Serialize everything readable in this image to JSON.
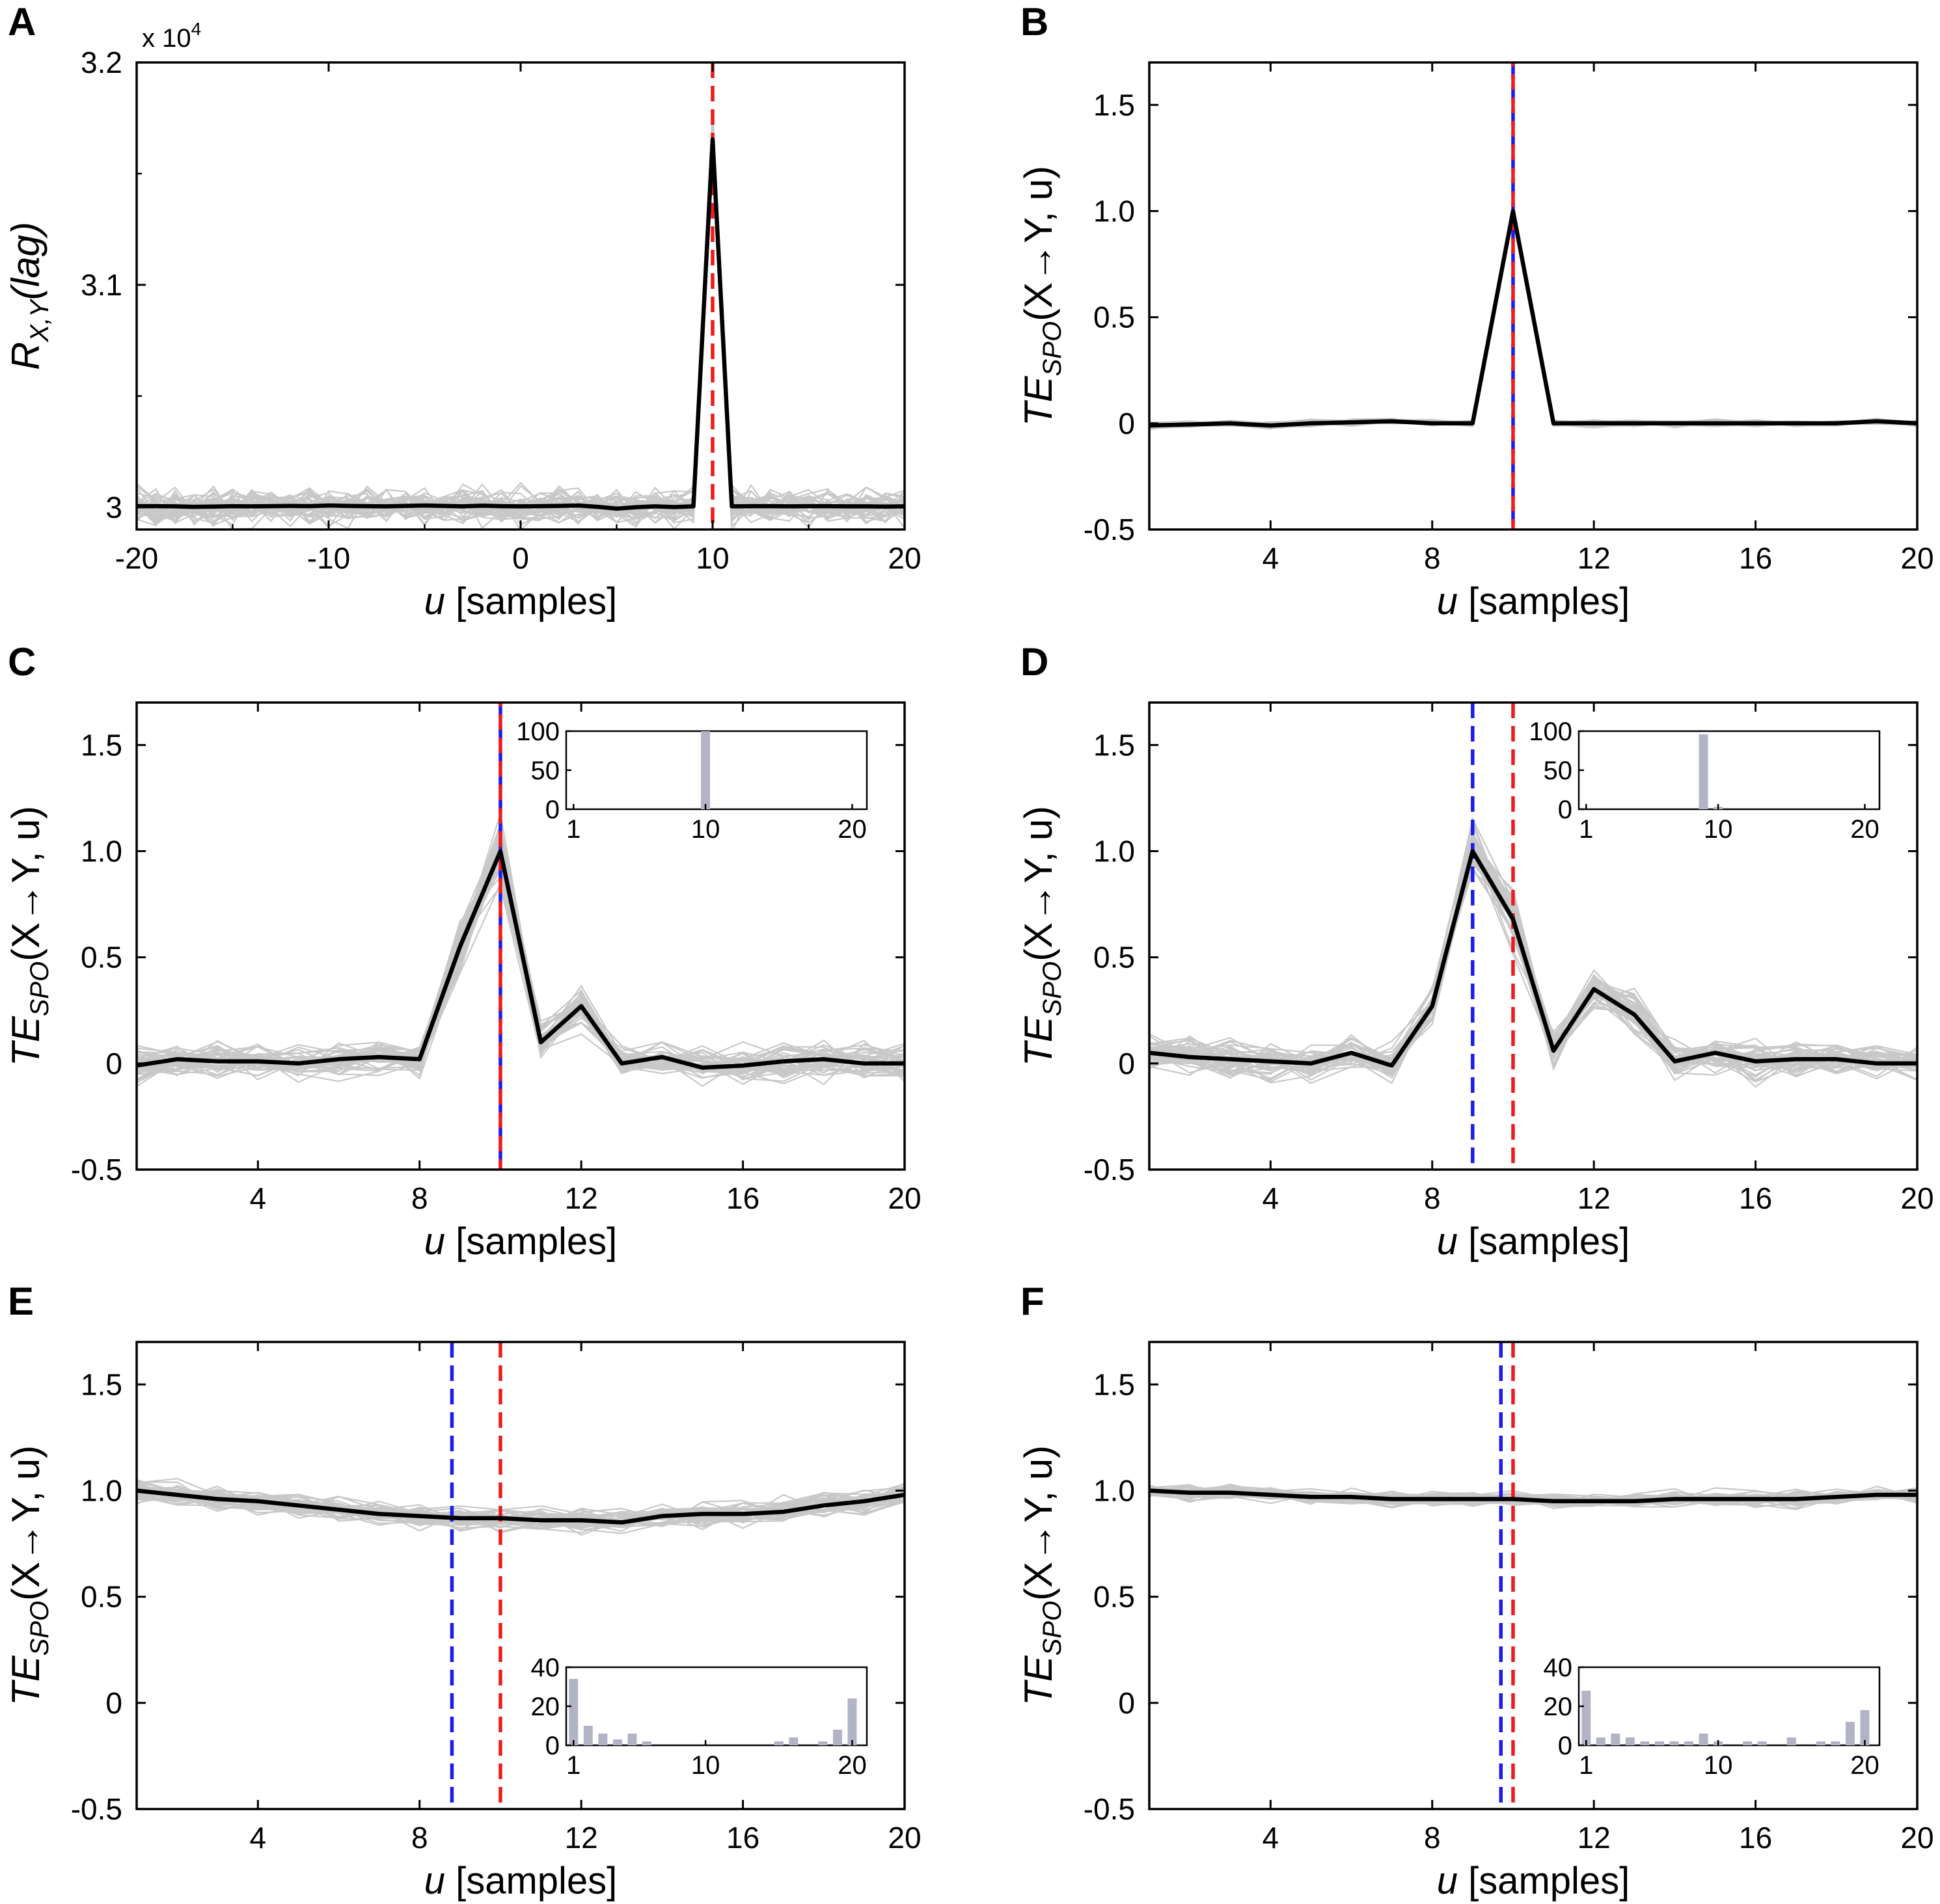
{
  "figure": {
    "xlabel_var": "u",
    "xlabel_unit": "[samples]",
    "ylabel_te_main": "TE",
    "ylabel_te_sub": "SPO",
    "ylabel_te_rest": "(X→Y, u)",
    "ylabel_r_main": "R",
    "ylabel_r_sub": "X,Y",
    "ylabel_r_rest": "(lag)"
  },
  "colors": {
    "mean_line": "#000000",
    "trial_lines": "#c8c8c8",
    "true_delay": "#ee1c1c",
    "estimated_delay": "#1c1cee",
    "inset_bars": "#b3b3c6"
  },
  "chart_data": [
    {
      "panel": "A",
      "type": "line",
      "xlim": [
        -20,
        20
      ],
      "ylim": [
        29900,
        32000
      ],
      "xticks": [
        -20,
        -10,
        0,
        10,
        20
      ],
      "xticklabels": [
        "-20",
        "-10",
        "0",
        "10",
        "20"
      ],
      "yticks": [
        30000,
        31000,
        32000
      ],
      "yticklabels": [
        "3",
        "3.1",
        "3.2"
      ],
      "yscale_label": "x 10",
      "yscale_exp": "4",
      "ylabel_kind": "R",
      "trial_noise": 110,
      "n_trials": 40,
      "true_delay": 10,
      "estimated_delay": null,
      "mean": {
        "x": [
          -20,
          -19,
          -18,
          -17,
          -16,
          -15,
          -14,
          -13,
          -12,
          -11,
          -10,
          -9,
          -8,
          -7,
          -6,
          -5,
          -4,
          -3,
          -2,
          -1,
          0,
          1,
          2,
          3,
          4,
          5,
          6,
          7,
          8,
          9,
          10,
          11,
          12,
          13,
          14,
          15,
          16,
          17,
          18,
          19,
          20
        ],
        "y": [
          30005,
          30005,
          30004,
          30002,
          30003,
          30005,
          30004,
          30005,
          30006,
          30005,
          30008,
          30006,
          30005,
          30004,
          30006,
          30008,
          30006,
          30004,
          30007,
          30005,
          30004,
          30005,
          30006,
          30008,
          30002,
          29994,
          30000,
          30004,
          30001,
          30004,
          31654,
          30004,
          30005,
          30005,
          30004,
          30005,
          30005,
          30004,
          30004,
          30003,
          30004
        ]
      },
      "inset": null
    },
    {
      "panel": "B",
      "type": "line",
      "xlim": [
        1,
        20
      ],
      "ylim": [
        -0.5,
        1.7
      ],
      "xticks": [
        4,
        8,
        12,
        16,
        20
      ],
      "xticklabels": [
        "4",
        "8",
        "12",
        "16",
        "20"
      ],
      "yticks": [
        -0.5,
        0,
        0.5,
        1.0,
        1.5
      ],
      "yticklabels": [
        "-0.5",
        "0",
        "0.5",
        "1.0",
        "1.5"
      ],
      "ylabel_kind": "TE",
      "trial_noise": 0.02,
      "n_trials": 40,
      "true_delay": 10,
      "estimated_delay": 10,
      "mean": {
        "x": [
          1,
          2,
          3,
          4,
          5,
          6,
          7,
          8,
          9,
          10,
          11,
          12,
          13,
          14,
          15,
          16,
          17,
          18,
          19,
          20
        ],
        "y": [
          -0.01,
          -0.005,
          0.0,
          -0.01,
          0.0,
          0.005,
          0.01,
          0.0,
          0.0,
          1.0,
          0.0,
          0.0,
          0.0,
          0.0,
          0.0,
          0.0,
          0.0,
          0.0,
          0.01,
          0.0
        ]
      },
      "inset": null
    },
    {
      "panel": "C",
      "type": "line",
      "xlim": [
        1,
        20
      ],
      "ylim": [
        -0.5,
        1.7
      ],
      "xticks": [
        4,
        8,
        12,
        16,
        20
      ],
      "xticklabels": [
        "4",
        "8",
        "12",
        "16",
        "20"
      ],
      "yticks": [
        -0.5,
        0,
        0.5,
        1.0,
        1.5
      ],
      "yticklabels": [
        "-0.5",
        "0",
        "0.5",
        "1.0",
        "1.5"
      ],
      "ylabel_kind": "TE",
      "trial_noise": 0.12,
      "n_trials": 40,
      "true_delay": 10,
      "estimated_delay": 10,
      "mean": {
        "x": [
          1,
          2,
          3,
          4,
          5,
          6,
          7,
          8,
          9,
          10,
          11,
          12,
          13,
          14,
          15,
          16,
          17,
          18,
          19,
          20
        ],
        "y": [
          -0.01,
          0.02,
          0.01,
          0.01,
          0.0,
          0.02,
          0.03,
          0.02,
          0.55,
          1.0,
          0.1,
          0.27,
          0.0,
          0.03,
          -0.02,
          -0.01,
          0.01,
          0.02,
          0.0,
          0.0
        ]
      },
      "inset": {
        "position": "top-right",
        "ylim": [
          0,
          100
        ],
        "yticks": [
          0,
          50,
          100
        ],
        "yticklabels": [
          "0",
          "50",
          "100"
        ],
        "xticks": [
          1,
          10,
          20
        ],
        "xticklabels": [
          "1",
          "10",
          "20"
        ],
        "bins": [
          1,
          2,
          3,
          4,
          5,
          6,
          7,
          8,
          9,
          10,
          11,
          12,
          13,
          14,
          15,
          16,
          17,
          18,
          19,
          20
        ],
        "counts": [
          0,
          0,
          0,
          0,
          0,
          0,
          0,
          0,
          0,
          100,
          0,
          0,
          0,
          0,
          0,
          0,
          0,
          0,
          0,
          0
        ]
      }
    },
    {
      "panel": "D",
      "type": "line",
      "xlim": [
        1,
        20
      ],
      "ylim": [
        -0.5,
        1.7
      ],
      "xticks": [
        4,
        8,
        12,
        16,
        20
      ],
      "xticklabels": [
        "4",
        "8",
        "12",
        "16",
        "20"
      ],
      "yticks": [
        -0.5,
        0,
        0.5,
        1.0,
        1.5
      ],
      "yticklabels": [
        "-0.5",
        "0",
        "0.5",
        "1.0",
        "1.5"
      ],
      "ylabel_kind": "TE",
      "trial_noise": 0.12,
      "n_trials": 40,
      "true_delay": 10,
      "estimated_delay": 9,
      "mean": {
        "x": [
          1,
          2,
          3,
          4,
          5,
          6,
          7,
          8,
          9,
          10,
          11,
          12,
          13,
          14,
          15,
          16,
          17,
          18,
          19,
          20
        ],
        "y": [
          0.05,
          0.03,
          0.02,
          0.01,
          0.0,
          0.05,
          -0.01,
          0.27,
          1.0,
          0.68,
          0.06,
          0.35,
          0.23,
          0.01,
          0.05,
          0.01,
          0.02,
          0.02,
          0.0,
          0.0
        ]
      },
      "inset": {
        "position": "top-right",
        "ylim": [
          0,
          100
        ],
        "yticks": [
          0,
          50,
          100
        ],
        "yticklabels": [
          "0",
          "50",
          "100"
        ],
        "xticks": [
          1,
          10,
          20
        ],
        "xticklabels": [
          "1",
          "10",
          "20"
        ],
        "bins": [
          1,
          2,
          3,
          4,
          5,
          6,
          7,
          8,
          9,
          10,
          11,
          12,
          13,
          14,
          15,
          16,
          17,
          18,
          19,
          20
        ],
        "counts": [
          0,
          0,
          0,
          0,
          0,
          0,
          0,
          0,
          96,
          3,
          0,
          0,
          0,
          0,
          0,
          0,
          0,
          0,
          0,
          0
        ]
      }
    },
    {
      "panel": "E",
      "type": "line",
      "xlim": [
        1,
        20
      ],
      "ylim": [
        -0.5,
        1.7
      ],
      "xticks": [
        4,
        8,
        12,
        16,
        20
      ],
      "xticklabels": [
        "4",
        "8",
        "12",
        "16",
        "20"
      ],
      "yticks": [
        -0.5,
        0,
        0.5,
        1.0,
        1.5
      ],
      "yticklabels": [
        "-0.5",
        "0",
        "0.5",
        "1.0",
        "1.5"
      ],
      "ylabel_kind": "TE",
      "trial_noise": 0.08,
      "n_trials": 40,
      "true_delay": 10,
      "estimated_delay": 8.8,
      "mean": {
        "x": [
          1,
          2,
          3,
          4,
          5,
          6,
          7,
          8,
          9,
          10,
          11,
          12,
          13,
          14,
          15,
          16,
          17,
          18,
          19,
          20
        ],
        "y": [
          1.0,
          0.98,
          0.96,
          0.95,
          0.93,
          0.91,
          0.89,
          0.88,
          0.87,
          0.87,
          0.86,
          0.86,
          0.85,
          0.88,
          0.89,
          0.89,
          0.9,
          0.93,
          0.95,
          0.98
        ]
      },
      "inset": {
        "position": "bottom-right",
        "ylim": [
          0,
          40
        ],
        "yticks": [
          0,
          20,
          40
        ],
        "yticklabels": [
          "0",
          "20",
          "40"
        ],
        "xticks": [
          1,
          10,
          20
        ],
        "xticklabels": [
          "1",
          "10",
          "20"
        ],
        "bins": [
          1,
          2,
          3,
          4,
          5,
          6,
          7,
          8,
          9,
          10,
          11,
          12,
          13,
          14,
          15,
          16,
          17,
          18,
          19,
          20
        ],
        "counts": [
          34,
          10,
          6,
          3,
          6,
          2,
          0,
          0,
          0,
          0,
          0,
          0,
          0,
          0,
          2,
          4,
          0,
          2,
          8,
          24
        ]
      }
    },
    {
      "panel": "F",
      "type": "line",
      "xlim": [
        1,
        20
      ],
      "ylim": [
        -0.5,
        1.7
      ],
      "xticks": [
        4,
        8,
        12,
        16,
        20
      ],
      "xticklabels": [
        "4",
        "8",
        "12",
        "16",
        "20"
      ],
      "yticks": [
        -0.5,
        0,
        0.5,
        1.0,
        1.5
      ],
      "yticklabels": [
        "-0.5",
        "0",
        "0.5",
        "1.0",
        "1.5"
      ],
      "ylabel_kind": "TE",
      "trial_noise": 0.05,
      "n_trials": 40,
      "true_delay": 10,
      "estimated_delay": 9.7,
      "mean": {
        "x": [
          1,
          2,
          3,
          4,
          5,
          6,
          7,
          8,
          9,
          10,
          11,
          12,
          13,
          14,
          15,
          16,
          17,
          18,
          19,
          20
        ],
        "y": [
          1.0,
          0.99,
          0.99,
          0.98,
          0.97,
          0.97,
          0.96,
          0.96,
          0.96,
          0.96,
          0.95,
          0.95,
          0.95,
          0.96,
          0.96,
          0.96,
          0.96,
          0.97,
          0.98,
          0.98
        ]
      },
      "inset": {
        "position": "bottom-right",
        "ylim": [
          0,
          40
        ],
        "yticks": [
          0,
          20,
          40
        ],
        "yticklabels": [
          "0",
          "20",
          "40"
        ],
        "xticks": [
          1,
          10,
          20
        ],
        "xticklabels": [
          "1",
          "10",
          "20"
        ],
        "bins": [
          1,
          2,
          3,
          4,
          5,
          6,
          7,
          8,
          9,
          10,
          11,
          12,
          13,
          14,
          15,
          16,
          17,
          18,
          19,
          20
        ],
        "counts": [
          28,
          4,
          6,
          4,
          2,
          2,
          2,
          2,
          6,
          2,
          0,
          2,
          2,
          0,
          4,
          0,
          2,
          2,
          12,
          18
        ]
      }
    }
  ]
}
